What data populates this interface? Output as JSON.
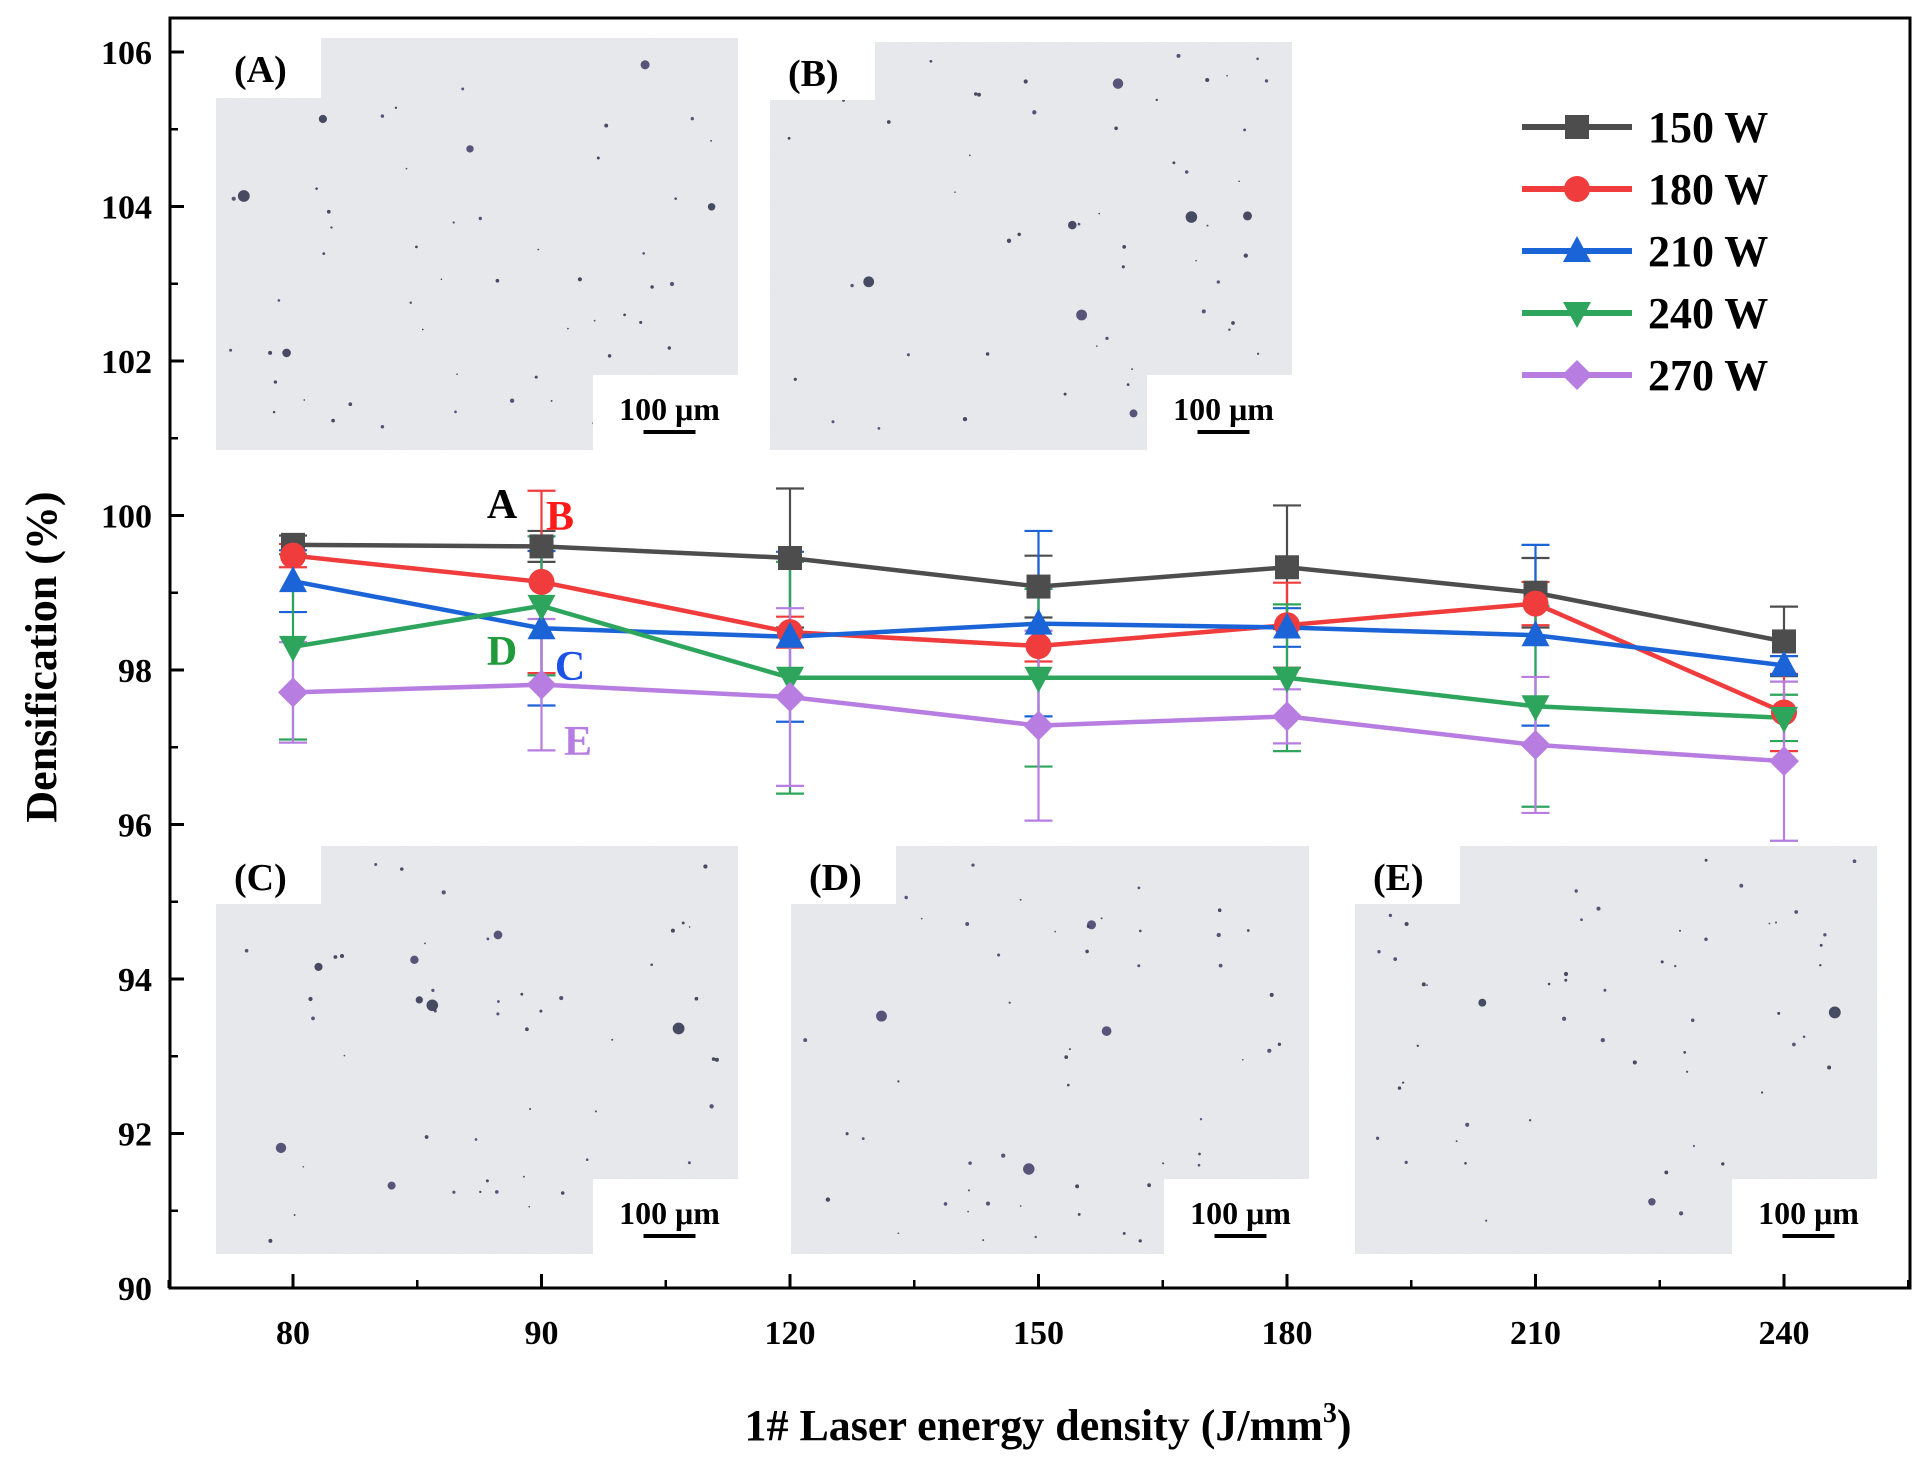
{
  "chart_data": {
    "type": "line",
    "title": "",
    "xlabel": "1# Laser energy density (J/mm",
    "xlabel_sup": "3",
    "xlabel_end": ")",
    "ylabel": "Densification (%)",
    "categories": [
      "80",
      "90",
      "120",
      "150",
      "180",
      "210",
      "240"
    ],
    "ylim": [
      90,
      106
    ],
    "yticks": [
      "90",
      "92",
      "94",
      "96",
      "98",
      "100",
      "102",
      "104",
      "106"
    ],
    "legend_position": "top-right",
    "series": [
      {
        "name": "150 W",
        "color": "#4d4d4d",
        "marker": "square",
        "values": [
          99.62,
          99.6,
          99.45,
          99.08,
          99.33,
          99.0,
          98.37
        ],
        "errors": [
          0.12,
          0.2,
          0.9,
          0.4,
          0.8,
          0.45,
          0.45
        ]
      },
      {
        "name": "180 W",
        "color": "#f03c3c",
        "marker": "circle",
        "values": [
          99.48,
          99.14,
          98.49,
          98.31,
          98.58,
          98.86,
          97.45
        ],
        "errors": [
          0.15,
          1.18,
          0.2,
          0.2,
          0.55,
          0.28,
          0.5
        ]
      },
      {
        "name": "210 W",
        "color": "#1b64d8",
        "marker": "triangle-up",
        "values": [
          99.15,
          98.54,
          98.43,
          98.6,
          98.55,
          98.45,
          98.06
        ],
        "errors": [
          0.4,
          1.0,
          1.1,
          1.2,
          0.25,
          1.17,
          0.12
        ]
      },
      {
        "name": "240 W",
        "color": "#2ea55c",
        "marker": "triangle-down",
        "values": [
          98.3,
          98.83,
          97.9,
          97.9,
          97.9,
          97.53,
          97.38
        ],
        "errors": [
          1.2,
          0.9,
          1.5,
          1.15,
          0.95,
          1.3,
          0.3
        ]
      },
      {
        "name": "270 W",
        "color": "#b77de0",
        "marker": "diamond",
        "values": [
          97.71,
          97.81,
          97.65,
          97.28,
          97.4,
          97.03,
          96.82
        ],
        "errors": [
          0.65,
          0.85,
          1.15,
          1.23,
          0.35,
          0.88,
          1.03
        ]
      }
    ],
    "annotations": [
      {
        "text": "A",
        "color": "#000000"
      },
      {
        "text": "B",
        "color": "#ff1a1a"
      },
      {
        "text": "D",
        "color": "#1f9b3c"
      },
      {
        "text": "C",
        "color": "#1b52e8"
      },
      {
        "text": "E",
        "color": "#b77de0"
      }
    ],
    "insets": [
      {
        "label": "(A)",
        "scale_bar": "100 μm"
      },
      {
        "label": "(B)",
        "scale_bar": "100 μm"
      },
      {
        "label": "(C)",
        "scale_bar": "100 μm"
      },
      {
        "label": "(D)",
        "scale_bar": "100 μm"
      },
      {
        "label": "(E)",
        "scale_bar": "100 μm"
      }
    ]
  }
}
